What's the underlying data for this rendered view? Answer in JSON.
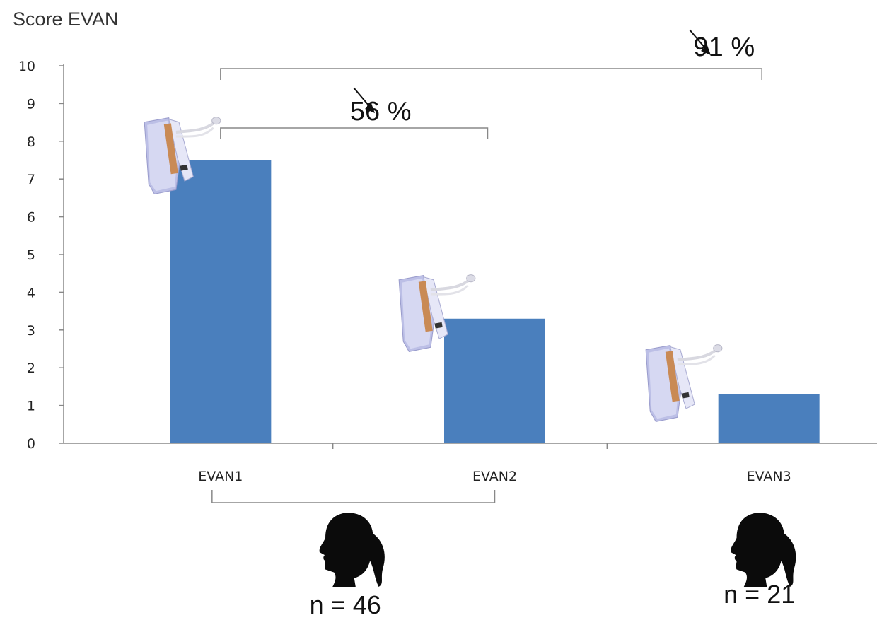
{
  "chart_data": {
    "type": "bar",
    "ylabel": "Score EVAN",
    "categories": [
      "EVAN1",
      "EVAN2",
      "EVAN3"
    ],
    "values": [
      7.5,
      3.3,
      1.3
    ],
    "ylim": [
      0,
      10
    ],
    "yticks": [
      0,
      1,
      2,
      3,
      4,
      5,
      6,
      7,
      8,
      9,
      10
    ],
    "bar_color": "#4a7fbd",
    "grid": false,
    "annotations": [
      {
        "from": "EVAN1",
        "to": "EVAN3",
        "text": "91 %",
        "symbol": "down-right-arrow"
      },
      {
        "from": "EVAN1",
        "to": "EVAN2",
        "text": "56 %",
        "symbol": "down-right-arrow"
      }
    ],
    "groups": [
      {
        "categories": [
          "EVAN1",
          "EVAN2"
        ],
        "label": "n = 46",
        "icon": "woman-head-silhouette-icon"
      },
      {
        "categories": [
          "EVAN3"
        ],
        "label": "n = 21",
        "icon": "woman-head-silhouette-icon"
      }
    ],
    "bar_icons": [
      "device-icon",
      "device-icon",
      "device-icon"
    ]
  }
}
